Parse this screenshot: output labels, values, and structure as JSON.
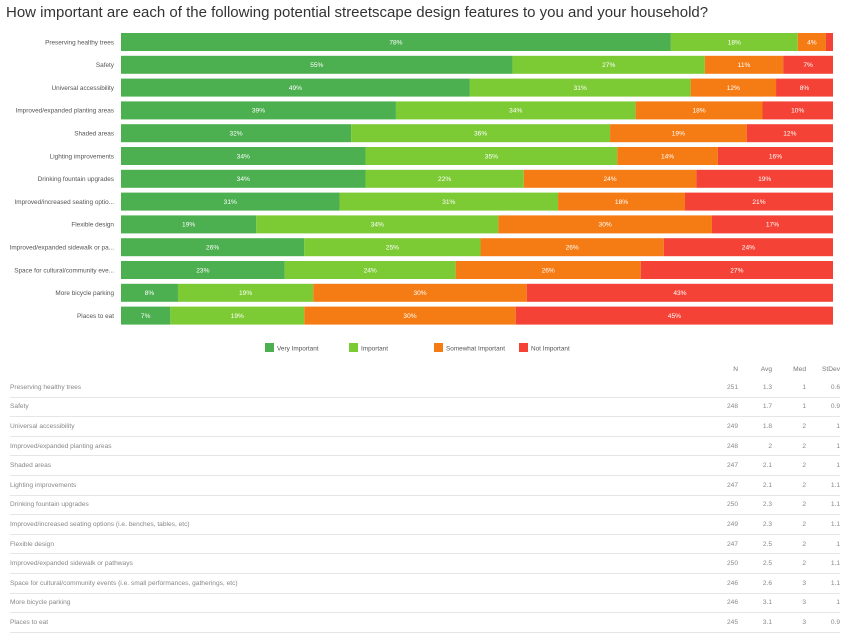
{
  "chart_data": {
    "type": "bar",
    "orientation": "horizontal",
    "stacked": true,
    "percent_scale": true,
    "title": "How important are each of the following potential streetscape design features to you and your household?",
    "categories": [
      "Preserving healthy trees",
      "Safety",
      "Universal accessibility",
      "Improved/expanded planting areas",
      "Shaded areas",
      "Lighting improvements",
      "Drinking fountain upgrades",
      "Improved/increased seating optio...",
      "Flexible design",
      "Improved/expanded sidewalk or pa...",
      "Space for cultural/community eve...",
      "More bicycle parking",
      "Places to eat"
    ],
    "series": [
      {
        "name": "Very Important",
        "color": "#4caf50",
        "values": [
          78,
          55,
          49,
          39,
          32,
          34,
          34,
          31,
          19,
          26,
          23,
          8,
          7
        ]
      },
      {
        "name": "Important",
        "color": "#7dcb34",
        "values": [
          18,
          27,
          31,
          34,
          36,
          35,
          22,
          31,
          34,
          25,
          24,
          19,
          19
        ]
      },
      {
        "name": "Somewhat Important",
        "color": "#f57c14",
        "values": [
          4,
          11,
          12,
          18,
          19,
          14,
          24,
          18,
          30,
          26,
          26,
          30,
          30
        ]
      },
      {
        "name": "Not Important",
        "color": "#f44336",
        "values": [
          1,
          7,
          8,
          10,
          12,
          16,
          19,
          21,
          17,
          24,
          27,
          43,
          45
        ]
      }
    ],
    "shown_labels": [
      [
        "78%",
        "18%",
        "4%",
        ""
      ],
      [
        "55%",
        "27%",
        "11%",
        "7%"
      ],
      [
        "49%",
        "31%",
        "12%",
        "8%"
      ],
      [
        "39%",
        "34%",
        "18%",
        "10%"
      ],
      [
        "32%",
        "36%",
        "19%",
        "12%"
      ],
      [
        "34%",
        "35%",
        "14%",
        "16%"
      ],
      [
        "34%",
        "22%",
        "24%",
        "19%"
      ],
      [
        "31%",
        "31%",
        "18%",
        "21%"
      ],
      [
        "19%",
        "34%",
        "30%",
        "17%"
      ],
      [
        "26%",
        "25%",
        "26%",
        "24%"
      ],
      [
        "23%",
        "24%",
        "26%",
        "27%"
      ],
      [
        "8%",
        "19%",
        "30%",
        "43%"
      ],
      [
        "7%",
        "19%",
        "30%",
        "45%"
      ]
    ],
    "legend_position": "bottom",
    "grid": false
  },
  "stats": {
    "headers": {
      "n": "N",
      "avg": "Avg",
      "med": "Med",
      "stdev": "StDev"
    },
    "rows": [
      {
        "label": "Preserving healthy trees",
        "n": "251",
        "avg": "1.3",
        "med": "1",
        "stdev": "0.6"
      },
      {
        "label": "Safety",
        "n": "248",
        "avg": "1.7",
        "med": "1",
        "stdev": "0.9"
      },
      {
        "label": "Universal accessibility",
        "n": "249",
        "avg": "1.8",
        "med": "2",
        "stdev": "1"
      },
      {
        "label": "Improved/expanded planting areas",
        "n": "248",
        "avg": "2",
        "med": "2",
        "stdev": "1"
      },
      {
        "label": "Shaded areas",
        "n": "247",
        "avg": "2.1",
        "med": "2",
        "stdev": "1"
      },
      {
        "label": "Lighting improvements",
        "n": "247",
        "avg": "2.1",
        "med": "2",
        "stdev": "1.1"
      },
      {
        "label": "Drinking fountain upgrades",
        "n": "250",
        "avg": "2.3",
        "med": "2",
        "stdev": "1.1"
      },
      {
        "label": "Improved/increased seating options (i.e. benches, tables, etc)",
        "n": "249",
        "avg": "2.3",
        "med": "2",
        "stdev": "1.1"
      },
      {
        "label": "Flexible design",
        "n": "247",
        "avg": "2.5",
        "med": "2",
        "stdev": "1"
      },
      {
        "label": "Improved/expanded sidewalk or pathways",
        "n": "250",
        "avg": "2.5",
        "med": "2",
        "stdev": "1.1"
      },
      {
        "label": "Space for cultural/community events (i.e. small performances, gatherings, etc)",
        "n": "246",
        "avg": "2.6",
        "med": "3",
        "stdev": "1.1"
      },
      {
        "label": "More bicycle parking",
        "n": "246",
        "avg": "3.1",
        "med": "3",
        "stdev": "1"
      },
      {
        "label": "Places to eat",
        "n": "245",
        "avg": "3.1",
        "med": "3",
        "stdev": "0.9"
      }
    ]
  }
}
